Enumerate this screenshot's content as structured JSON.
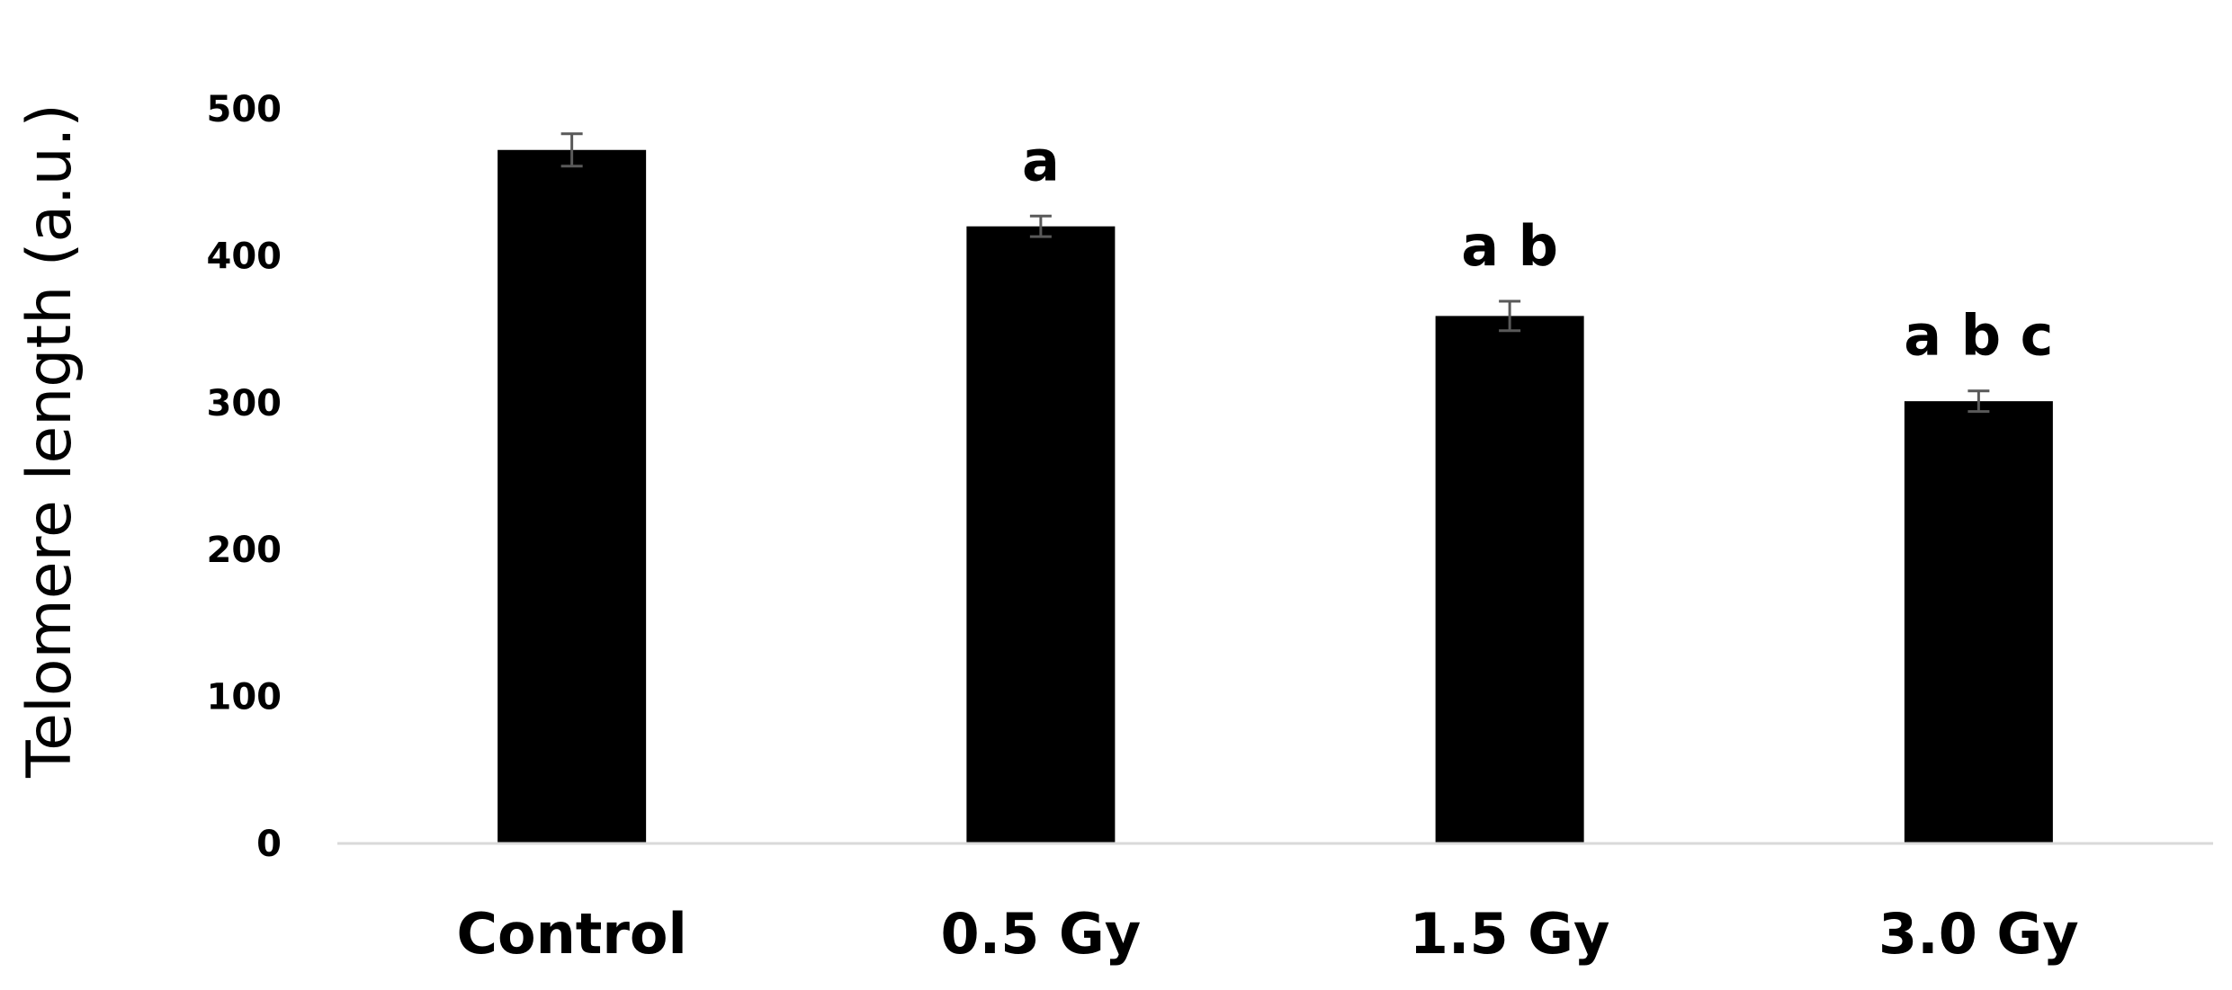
{
  "chart_data": {
    "type": "bar",
    "title": "",
    "xlabel": "",
    "ylabel": "Telomere length (a.u.)",
    "categories": [
      "Control",
      "0.5 Gy",
      "1.5 Gy",
      "3.0 Gy"
    ],
    "series": [
      {
        "values": [
          472,
          420,
          359,
          301
        ],
        "errors": [
          11,
          7,
          10,
          7
        ],
        "color": "#000000"
      }
    ],
    "annotations": [
      "",
      "a",
      "a b",
      "a b c"
    ],
    "ylim": [
      0,
      500
    ],
    "yticks": [
      0,
      100,
      200,
      300,
      400,
      500
    ],
    "ytick_labels": [
      "0",
      "100",
      "200",
      "300",
      "400",
      "500"
    ],
    "grid": false,
    "legend": "none",
    "axis_color": "#d9d9d9",
    "errorbar_color": "#595959"
  }
}
